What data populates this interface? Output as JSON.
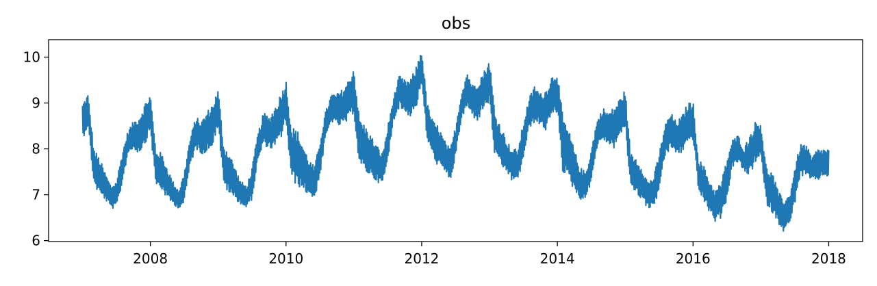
{
  "chart_data": {
    "type": "line",
    "title": "obs",
    "xlabel": "",
    "ylabel": "",
    "xlim": [
      2006.5,
      2018.5
    ],
    "ylim": [
      5.98,
      10.38
    ],
    "x_ticks": [
      2008,
      2010,
      2012,
      2014,
      2016,
      2018
    ],
    "x_tick_labels": [
      "2008",
      "2010",
      "2012",
      "2014",
      "2016",
      "2018"
    ],
    "y_ticks": [
      6,
      7,
      8,
      9,
      10
    ],
    "y_tick_labels": [
      "6",
      "7",
      "8",
      "9",
      "10"
    ],
    "grid": false,
    "legend": "none",
    "series": [
      {
        "color": "#1f77b4",
        "x": [
          2007.0,
          2007.08,
          2007.17,
          2007.25,
          2007.33,
          2007.42,
          2007.5,
          2007.58,
          2007.67,
          2007.75,
          2007.83,
          2007.92,
          2008.0,
          2008.08,
          2008.17,
          2008.25,
          2008.33,
          2008.42,
          2008.5,
          2008.58,
          2008.67,
          2008.75,
          2008.83,
          2008.92,
          2009.0,
          2009.08,
          2009.17,
          2009.25,
          2009.33,
          2009.42,
          2009.5,
          2009.58,
          2009.67,
          2009.75,
          2009.83,
          2009.92,
          2010.0,
          2010.08,
          2010.17,
          2010.25,
          2010.33,
          2010.42,
          2010.5,
          2010.58,
          2010.67,
          2010.75,
          2010.83,
          2010.92,
          2011.0,
          2011.08,
          2011.17,
          2011.25,
          2011.33,
          2011.42,
          2011.5,
          2011.58,
          2011.67,
          2011.75,
          2011.83,
          2011.92,
          2012.0,
          2012.08,
          2012.17,
          2012.25,
          2012.33,
          2012.42,
          2012.5,
          2012.58,
          2012.67,
          2012.75,
          2012.83,
          2012.92,
          2013.0,
          2013.08,
          2013.17,
          2013.25,
          2013.33,
          2013.42,
          2013.5,
          2013.58,
          2013.67,
          2013.75,
          2013.83,
          2013.92,
          2014.0,
          2014.08,
          2014.17,
          2014.25,
          2014.33,
          2014.42,
          2014.5,
          2014.58,
          2014.67,
          2014.75,
          2014.83,
          2014.92,
          2015.0,
          2015.08,
          2015.17,
          2015.25,
          2015.33,
          2015.42,
          2015.5,
          2015.58,
          2015.67,
          2015.75,
          2015.83,
          2015.92,
          2016.0,
          2016.08,
          2016.17,
          2016.25,
          2016.33,
          2016.42,
          2016.5,
          2016.58,
          2016.67,
          2016.75,
          2016.83,
          2016.92,
          2017.0,
          2017.08,
          2017.17,
          2017.25,
          2017.33,
          2017.42,
          2017.5,
          2017.58,
          2017.67,
          2017.75,
          2017.83,
          2017.92,
          2018.0
        ],
        "upper": [
          9.0,
          9.2,
          8.0,
          7.8,
          7.5,
          7.2,
          7.3,
          7.9,
          8.4,
          8.6,
          8.7,
          9.0,
          9.2,
          8.0,
          7.9,
          7.6,
          7.3,
          7.1,
          7.5,
          8.2,
          8.7,
          8.6,
          8.8,
          9.0,
          9.3,
          8.1,
          7.9,
          7.6,
          7.3,
          7.2,
          7.6,
          8.3,
          8.8,
          8.7,
          8.9,
          9.2,
          9.5,
          8.5,
          8.4,
          8.1,
          7.8,
          7.6,
          8.2,
          8.8,
          9.2,
          9.2,
          9.3,
          9.5,
          9.8,
          8.7,
          8.5,
          8.3,
          8.1,
          7.9,
          8.5,
          9.1,
          9.6,
          9.5,
          9.5,
          9.8,
          10.2,
          9.0,
          8.6,
          8.5,
          8.2,
          8.0,
          8.5,
          9.2,
          9.7,
          9.4,
          9.5,
          9.7,
          9.95,
          8.8,
          8.5,
          8.2,
          8.0,
          8.0,
          8.6,
          9.1,
          9.4,
          9.2,
          9.3,
          9.6,
          9.7,
          8.7,
          8.4,
          8.0,
          7.6,
          7.5,
          8.0,
          8.6,
          8.9,
          8.8,
          8.9,
          9.1,
          9.3,
          7.9,
          7.8,
          7.6,
          7.3,
          7.4,
          7.9,
          8.5,
          8.8,
          8.6,
          8.7,
          9.0,
          9.05,
          7.8,
          7.6,
          7.3,
          7.1,
          7.3,
          7.8,
          8.2,
          8.3,
          8.0,
          8.3,
          8.6,
          8.6,
          7.6,
          7.5,
          7.1,
          6.9,
          7.0,
          7.6,
          8.1,
          8.1,
          7.8,
          8.0,
          8.0,
          8.0
        ],
        "lower": [
          8.2,
          8.5,
          7.2,
          7.0,
          6.9,
          6.7,
          6.7,
          7.2,
          7.9,
          8.0,
          7.9,
          8.1,
          8.4,
          7.2,
          7.1,
          6.9,
          6.8,
          6.7,
          6.8,
          7.6,
          8.0,
          7.9,
          7.9,
          8.1,
          8.5,
          7.2,
          7.0,
          6.9,
          6.8,
          6.7,
          6.9,
          7.7,
          8.1,
          8.0,
          8.0,
          8.2,
          8.6,
          7.3,
          7.2,
          7.1,
          7.0,
          6.9,
          7.4,
          8.2,
          8.6,
          8.5,
          8.5,
          8.6,
          8.8,
          7.6,
          7.5,
          7.4,
          7.3,
          7.2,
          7.7,
          8.6,
          8.9,
          8.8,
          8.7,
          8.9,
          9.4,
          8.2,
          7.8,
          7.6,
          7.5,
          7.3,
          7.8,
          8.6,
          8.9,
          8.7,
          8.6,
          8.9,
          9.0,
          7.8,
          7.6,
          7.5,
          7.3,
          7.3,
          7.8,
          8.4,
          8.6,
          8.5,
          8.4,
          8.7,
          8.8,
          7.5,
          7.3,
          7.1,
          6.9,
          6.9,
          7.3,
          8.0,
          8.2,
          8.1,
          8.0,
          8.3,
          8.4,
          7.2,
          7.0,
          6.9,
          6.7,
          6.7,
          7.1,
          7.8,
          8.0,
          7.9,
          7.9,
          8.1,
          8.2,
          7.1,
          6.8,
          6.6,
          6.4,
          6.5,
          6.9,
          7.6,
          7.7,
          7.5,
          7.4,
          7.7,
          7.8,
          6.8,
          6.6,
          6.4,
          6.2,
          6.3,
          6.8,
          7.4,
          7.4,
          7.3,
          7.3,
          7.4,
          7.4
        ]
      }
    ]
  }
}
